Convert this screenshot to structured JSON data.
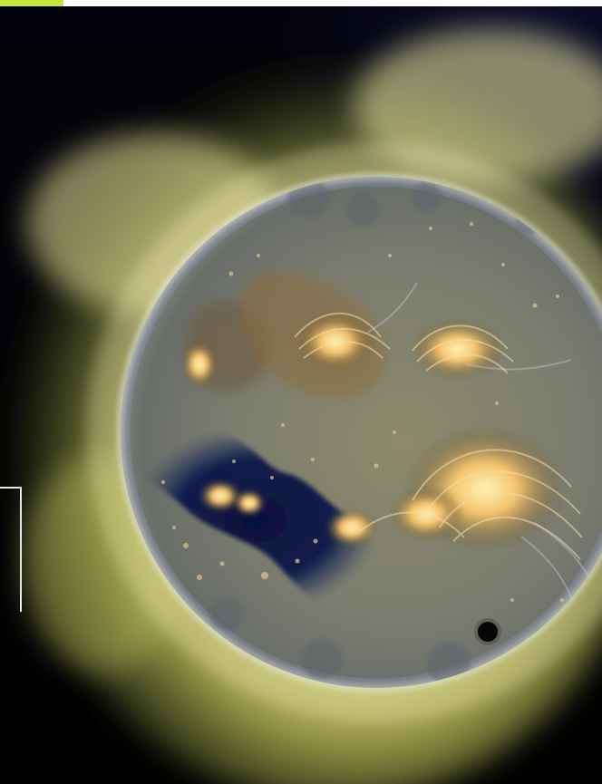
{
  "image": {
    "subject": "sun",
    "colors": {
      "space": "#000000",
      "corona_inner": "#e7e58b",
      "corona_outer": "#6f7b32",
      "disk_base": "#6c6f68",
      "active_region": "#f4c36d",
      "coronal_hole": "#071246",
      "top_accent": "#c9e33d"
    },
    "icons": {
      "bracket": "bracket-marker-icon",
      "transit_dot": "planet-transit-icon"
    }
  }
}
